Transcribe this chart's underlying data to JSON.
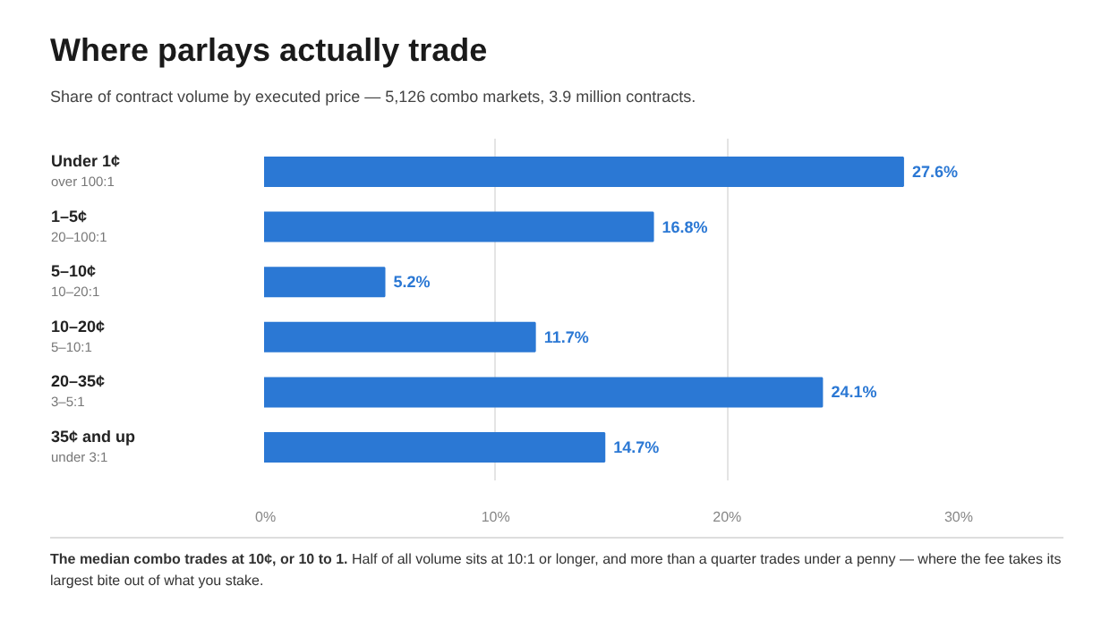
{
  "chart_data": {
    "type": "bar",
    "orientation": "horizontal",
    "title": "Where parlays actually trade",
    "subtitle": "Share of contract volume by executed price — 5,126 combo markets, 3.9 million contracts.",
    "categories": [
      "Under 1¢\nover 100:1",
      "1–5¢\n20–100:1",
      "5–10¢\n10–20:1",
      "10–20¢\n5–10:1",
      "20–35¢\n3–5:1",
      "35¢ and up\nunder 3:1"
    ],
    "values": [
      27.6,
      16.8,
      5.2,
      11.7,
      24.1,
      14.7
    ],
    "value_labels": [
      "27.6%",
      "16.8%",
      "5.2%",
      "11.7%",
      "24.1%",
      "14.7%"
    ],
    "color": "#2b78d4",
    "xlim": [
      0,
      30
    ],
    "xticks": [
      {
        "value": 0,
        "label": "0%"
      },
      {
        "value": 10,
        "label": "10%"
      },
      {
        "value": 20,
        "label": "20%"
      },
      {
        "value": 30,
        "label": "30%"
      }
    ],
    "grid": "x",
    "annotations": [
      "The median combo trades at 10¢, or 10 to 1.",
      "Half of all volume sits at 10:1 or longer, and more than a quarter trades under a penny — where the fee takes its largest bite out of what you stake."
    ]
  }
}
